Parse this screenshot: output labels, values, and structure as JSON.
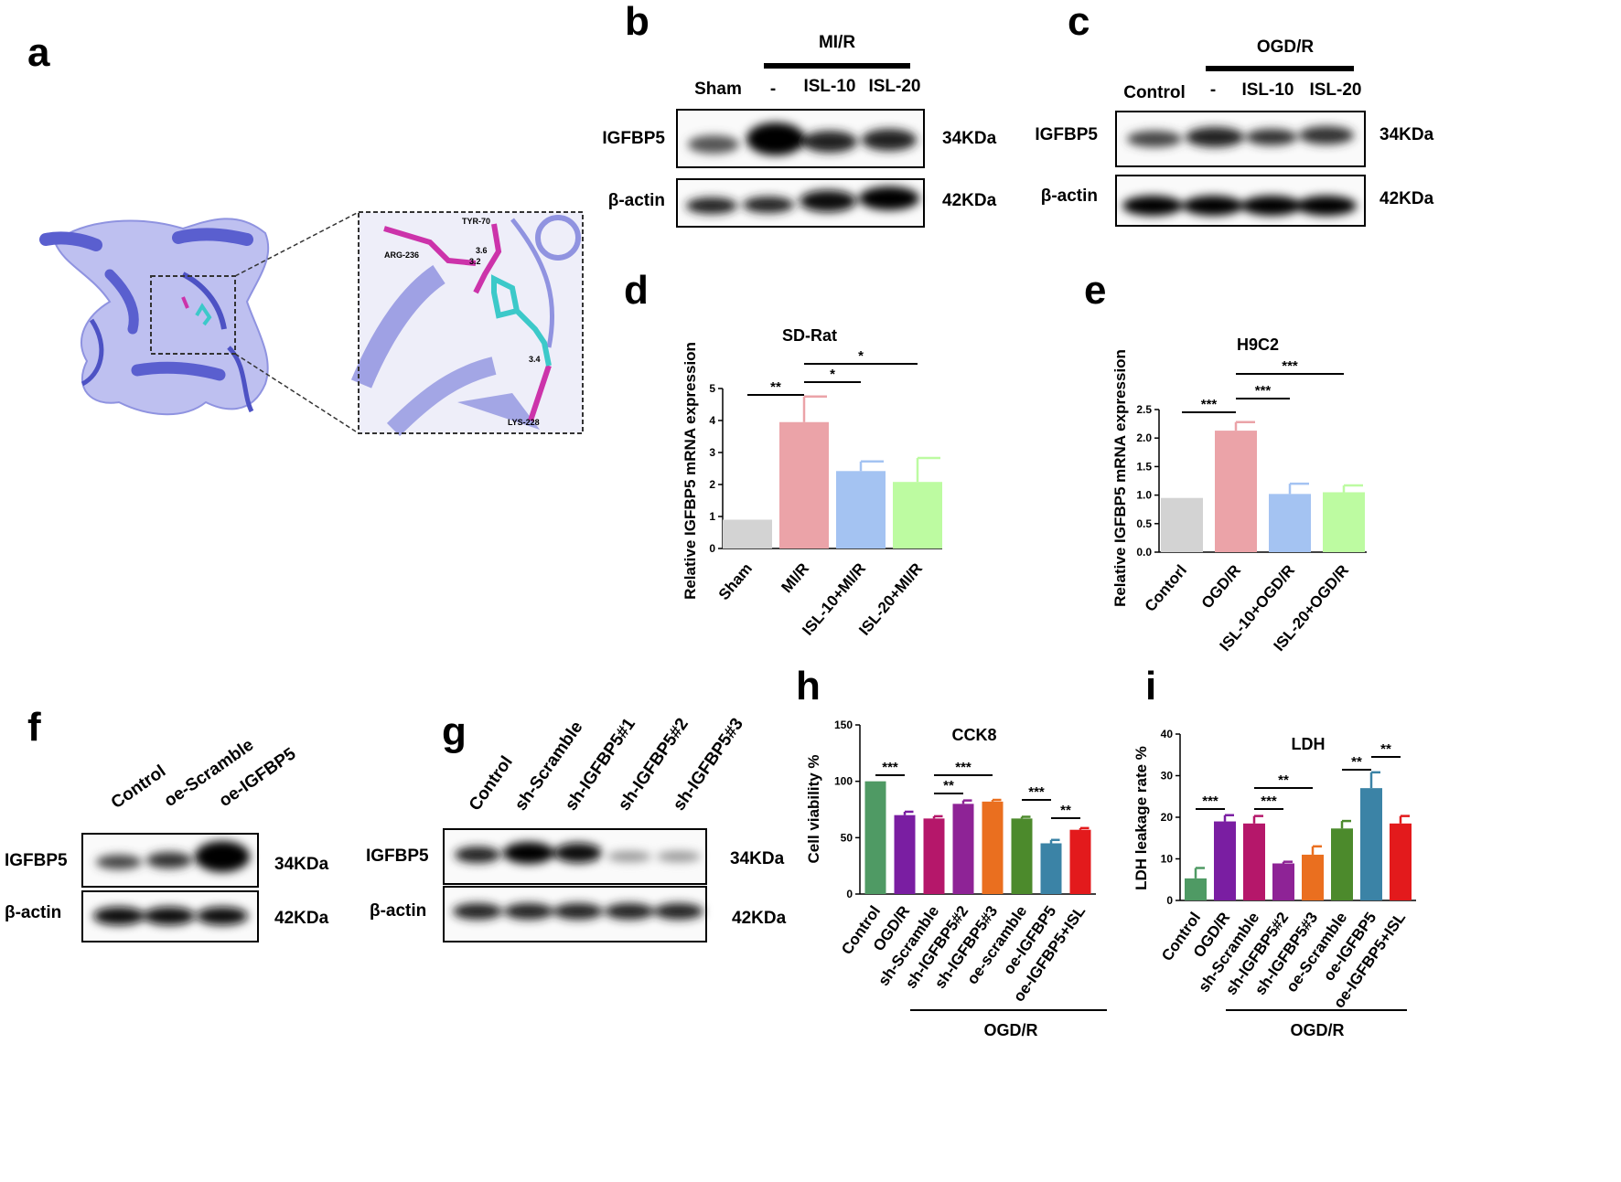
{
  "panels": {
    "a": "a",
    "b": "b",
    "c": "c",
    "d": "d",
    "e": "e",
    "f": "f",
    "g": "g",
    "h": "h",
    "i": "i"
  },
  "docking": {
    "residues": {
      "tyr": "TYR-70",
      "arg": "ARG-236",
      "lys": "LYS-228"
    },
    "distances": {
      "d1": "3.6",
      "d2": "3.2",
      "d3": "3.4"
    }
  },
  "colors": {
    "protein": "#6a6fd6",
    "ligand": "#3cc9c9",
    "residue": "#cc33aa"
  },
  "blot_b": {
    "group_label": "MI/R",
    "lanes": [
      "Sham",
      "-",
      "ISL-10",
      "ISL-20"
    ],
    "rows": [
      {
        "protein": "IGFBP5",
        "size": "34KDa"
      },
      {
        "protein": "β-actin",
        "size": "42KDa"
      }
    ]
  },
  "blot_c": {
    "group_label": "OGD/R",
    "lanes": [
      "Control",
      "-",
      "ISL-10",
      "ISL-20"
    ],
    "rows": [
      {
        "protein": "IGFBP5",
        "size": "34KDa"
      },
      {
        "protein": "β-actin",
        "size": "42KDa"
      }
    ]
  },
  "blot_f": {
    "lanes": [
      "Control",
      "oe-Scramble",
      "oe-IGFBP5"
    ],
    "rows": [
      {
        "protein": "IGFBP5",
        "size": "34KDa"
      },
      {
        "protein": "β-actin",
        "size": "42KDa"
      }
    ]
  },
  "blot_g": {
    "lanes": [
      "Control",
      "sh-Scramble",
      "sh-IGFBP5#1",
      "sh-IGFBP5#2",
      "sh-IGFBP5#3"
    ],
    "rows": [
      {
        "protein": "IGFBP5",
        "size": "34KDa"
      },
      {
        "protein": "β-actin",
        "size": "42KDa"
      }
    ]
  },
  "chart_data": [
    {
      "id": "d",
      "type": "bar",
      "title": "SD-Rat",
      "ylabel": "Relative IGFBP5 mRNA expression",
      "categories": [
        "Sham",
        "MI/R",
        "ISL-10+MI/R",
        "ISL-20+MI/R"
      ],
      "values": [
        0.9,
        3.95,
        2.42,
        2.08
      ],
      "errors": [
        0,
        0.8,
        0.3,
        0.75
      ],
      "colors": [
        "#d3d3d3",
        "#eba3a8",
        "#a4c3f2",
        "#bdfba1"
      ],
      "ylim": [
        0,
        5
      ],
      "yticks": [
        "0",
        "1",
        "2",
        "3",
        "4",
        "5"
      ],
      "significance": [
        {
          "from": 0,
          "to": 1,
          "label": "**"
        },
        {
          "from": 1,
          "to": 2,
          "label": "*"
        },
        {
          "from": 1,
          "to": 3,
          "label": "*"
        }
      ]
    },
    {
      "id": "e",
      "type": "bar",
      "title": "H9C2",
      "ylabel": "Relative IGFBP5 mRNA expression",
      "categories": [
        "Contorl",
        "OGD/R",
        "ISL-10+OGD/R",
        "ISL-20+OGD/R"
      ],
      "values": [
        0.95,
        2.13,
        1.02,
        1.05
      ],
      "errors": [
        0,
        0.15,
        0.18,
        0.12
      ],
      "colors": [
        "#d3d3d3",
        "#eba3a8",
        "#a4c3f2",
        "#bdfba1"
      ],
      "ylim": [
        0,
        2.5
      ],
      "yticks": [
        "0.0",
        "0.5",
        "1.0",
        "1.5",
        "2.0",
        "2.5"
      ],
      "significance": [
        {
          "from": 0,
          "to": 1,
          "label": "***"
        },
        {
          "from": 1,
          "to": 2,
          "label": "***"
        },
        {
          "from": 1,
          "to": 3,
          "label": "***"
        }
      ]
    },
    {
      "id": "h",
      "type": "bar",
      "title": "CCK8",
      "ylabel": "Cell viability %",
      "categories": [
        "Control",
        "OGD/R",
        "sh-Scramble",
        "sh-IGFBP5#2",
        "sh-IGFBP5#3",
        "oe-scramble",
        "oe-IGFBP5",
        "oe-IGFBP5+ISL"
      ],
      "values": [
        100,
        70,
        67,
        80,
        82,
        67,
        45,
        57
      ],
      "errors": [
        0,
        3,
        2,
        3,
        1.5,
        1.5,
        3,
        1.5
      ],
      "colors": [
        "#4f9a64",
        "#7a1ea2",
        "#b5176a",
        "#8e2396",
        "#ea6f1f",
        "#4c8a2c",
        "#3b83a6",
        "#e31a1c"
      ],
      "ylim": [
        0,
        150
      ],
      "yticks": [
        "0",
        "50",
        "100",
        "150"
      ],
      "group_label": "OGD/R",
      "significance": [
        {
          "from": 0,
          "to": 1,
          "label": "***"
        },
        {
          "from": 2,
          "to": 3,
          "label": "**"
        },
        {
          "from": 2,
          "to": 4,
          "label": "***"
        },
        {
          "from": 5,
          "to": 6,
          "label": "***"
        },
        {
          "from": 6,
          "to": 7,
          "label": "**"
        }
      ]
    },
    {
      "id": "i",
      "type": "bar",
      "title": "LDH",
      "ylabel": "LDH leakage rate %",
      "categories": [
        "Control",
        "OGD/R",
        "sh-Scramble",
        "sh-IGFBP5#2",
        "sh-IGFBP5#3",
        "oe-Scramble",
        "oe-IGFBP5",
        "oe-IGFBP5+ISL"
      ],
      "values": [
        5.3,
        19,
        18.5,
        8.9,
        11,
        17.3,
        27,
        18.5
      ],
      "errors": [
        2.5,
        1.5,
        1.8,
        0.4,
        2,
        1.8,
        3.8,
        1.8
      ],
      "colors": [
        "#4f9a64",
        "#7a1ea2",
        "#b5176a",
        "#8e2396",
        "#ea6f1f",
        "#4c8a2c",
        "#3b83a6",
        "#e31a1c"
      ],
      "ylim": [
        0,
        40
      ],
      "yticks": [
        "0",
        "10",
        "20",
        "30",
        "40"
      ],
      "group_label": "OGD/R",
      "significance": [
        {
          "from": 0,
          "to": 1,
          "label": "***"
        },
        {
          "from": 2,
          "to": 3,
          "label": "***"
        },
        {
          "from": 2,
          "to": 4,
          "label": "**"
        },
        {
          "from": 5,
          "to": 6,
          "label": "**"
        },
        {
          "from": 6,
          "to": 7,
          "label": "**"
        }
      ]
    }
  ]
}
